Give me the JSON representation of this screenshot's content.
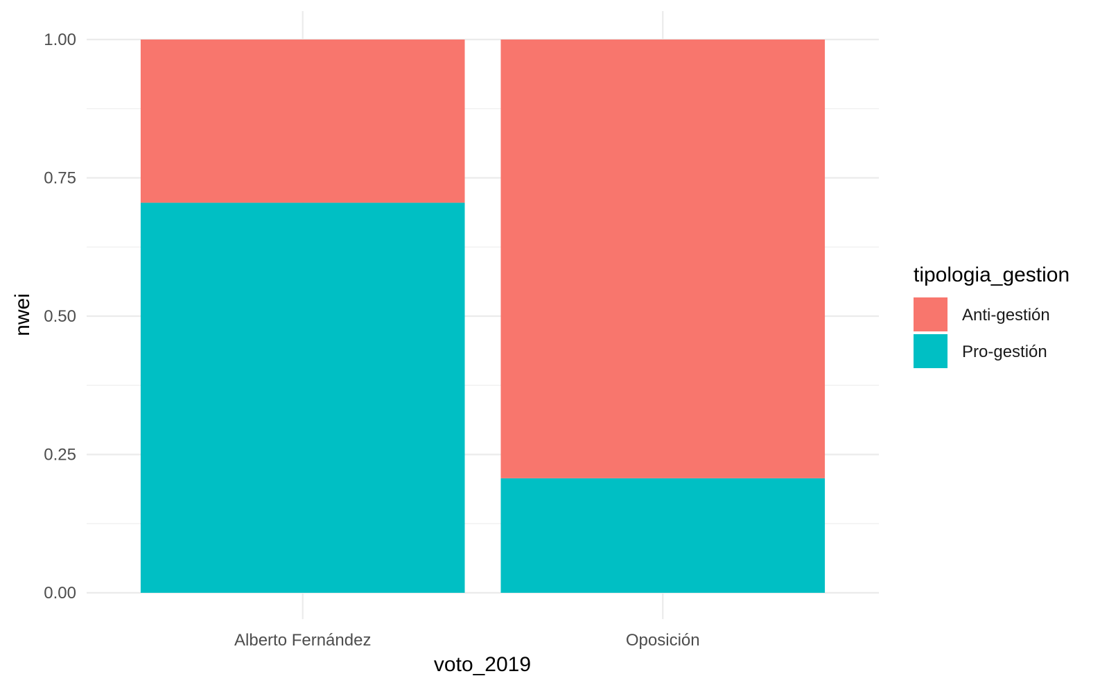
{
  "chart_data": {
    "type": "bar",
    "stacked": true,
    "categories": [
      "Alberto Fernández",
      "Oposición"
    ],
    "series": [
      {
        "name": "Pro-gestión",
        "values": [
          0.705,
          0.207
        ]
      },
      {
        "name": "Anti-gestión",
        "values": [
          0.295,
          0.793
        ]
      }
    ],
    "xlabel": "voto_2019",
    "ylabel": "nwei",
    "ylim": [
      0,
      1
    ],
    "yticks": [
      "0.00",
      "0.25",
      "0.50",
      "0.75",
      "1.00"
    ],
    "grid": true,
    "legend": {
      "title": "tipologia_gestion",
      "position": "right",
      "entries": [
        "Anti-gestión",
        "Pro-gestión"
      ]
    },
    "colors": {
      "Anti-gestión": "#F8766D",
      "Pro-gestión": "#00BFC4",
      "grid": "#EBEBEB"
    }
  }
}
